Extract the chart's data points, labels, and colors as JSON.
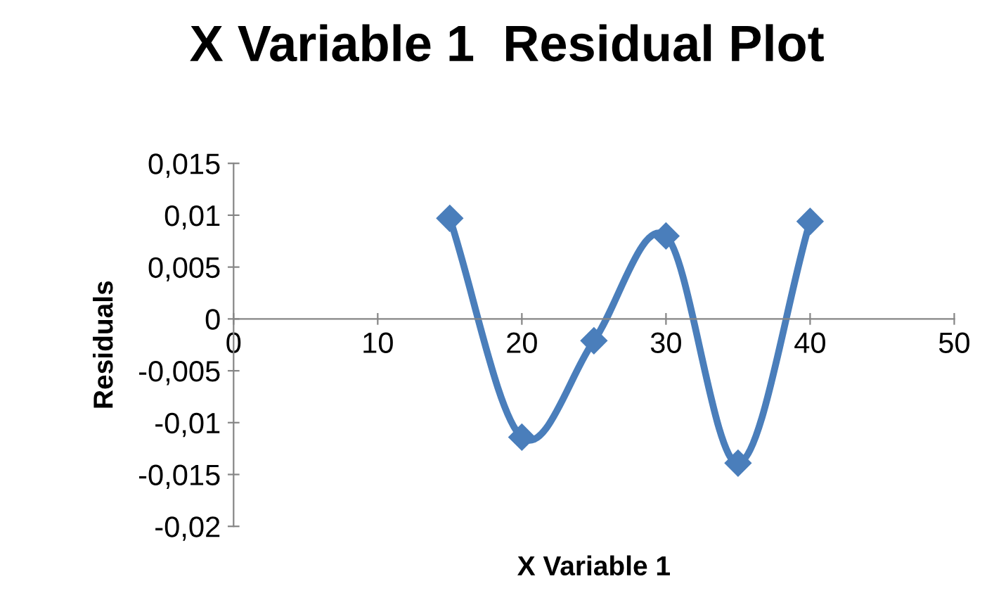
{
  "chart_data": {
    "type": "line",
    "title": "X Variable 1  Residual Plot",
    "xlabel": "X Variable 1",
    "ylabel": "Residuals",
    "x": [
      15,
      20,
      25,
      30,
      35,
      40
    ],
    "series": [
      {
        "color": "#4a7ebb",
        "values": [
          0.0097,
          -0.0114,
          -0.0021,
          0.008,
          -0.0139,
          0.0094
        ]
      }
    ],
    "xlim": [
      0,
      50
    ],
    "xticks": [
      0,
      10,
      20,
      30,
      40,
      50
    ],
    "ylim": [
      -0.02,
      0.015
    ],
    "yticks": [
      {
        "value": -0.02,
        "label": "-0,02"
      },
      {
        "value": -0.015,
        "label": "-0,015"
      },
      {
        "value": -0.01,
        "label": "-0,01"
      },
      {
        "value": -0.005,
        "label": "-0,005"
      },
      {
        "value": 0,
        "label": "0"
      },
      {
        "value": 0.005,
        "label": "0,005"
      },
      {
        "value": 0.01,
        "label": "0,01"
      },
      {
        "value": 0.015,
        "label": "0,015"
      }
    ],
    "grid": false,
    "legend": false,
    "marker": "diamond",
    "line_style": "solid"
  }
}
